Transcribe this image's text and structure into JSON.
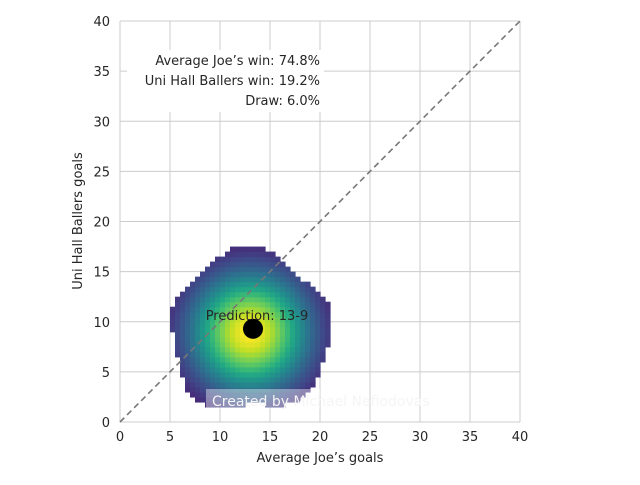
{
  "chart_data": {
    "type": "heatmap",
    "title": "",
    "xlabel": "Average Joe’s goals",
    "ylabel": "Uni Hall Ballers goals",
    "xlim": [
      0,
      40
    ],
    "ylim": [
      0,
      40
    ],
    "x_ticks": [
      "0",
      "5",
      "10",
      "15",
      "20",
      "25",
      "30",
      "35",
      "40"
    ],
    "y_ticks": [
      "0",
      "5",
      "10",
      "15",
      "20",
      "25",
      "30",
      "35",
      "40"
    ],
    "grid": true,
    "colormap": "viridis",
    "density_center": [
      13,
      9
    ],
    "density_spread": [
      4.2,
      4.2
    ],
    "density_x_extent": [
      4,
      23.7
    ],
    "density_y_extent": [
      1.5,
      18
    ],
    "reference_line": {
      "style": "dashed",
      "color": "#777777",
      "from": [
        0,
        0
      ],
      "to": [
        40,
        40
      ]
    },
    "prediction": {
      "label": "Prediction: 13-9",
      "x": 13.3,
      "y": 9.3,
      "color": "#000000"
    },
    "stats": [
      "Average Joe’s win: 74.8%",
      "Uni Hall Ballers win: 19.2%",
      "Draw: 6.0%"
    ],
    "watermark": "Created by Michael Nefiodovas"
  }
}
